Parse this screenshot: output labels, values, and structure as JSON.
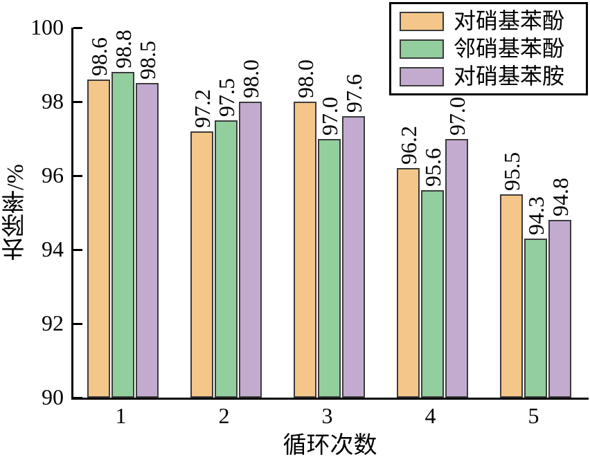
{
  "chart_data": {
    "type": "bar",
    "title": "",
    "xlabel": "循环次数",
    "ylabel": "去除率/%",
    "categories": [
      "1",
      "2",
      "3",
      "4",
      "5"
    ],
    "series": [
      {
        "name": "对硝基苯酚",
        "color": "#F5C689",
        "values": [
          98.6,
          97.2,
          98.0,
          96.2,
          95.5
        ]
      },
      {
        "name": "邻硝基苯酚",
        "color": "#92CE9E",
        "values": [
          98.8,
          97.5,
          97.0,
          95.6,
          94.3
        ]
      },
      {
        "name": "对硝基苯胺",
        "color": "#C2ABCF",
        "values": [
          98.5,
          98.0,
          97.6,
          97.0,
          94.8
        ]
      }
    ],
    "ylim": [
      90,
      100
    ],
    "yticks": [
      90,
      92,
      94,
      96,
      98,
      100
    ],
    "bar_edge_color": "#3B3B3B",
    "axis_color": "#000000",
    "value_labels_rotated": true,
    "value_label_format": "1-decimal",
    "legend_position": "top-right",
    "grid": false
  }
}
